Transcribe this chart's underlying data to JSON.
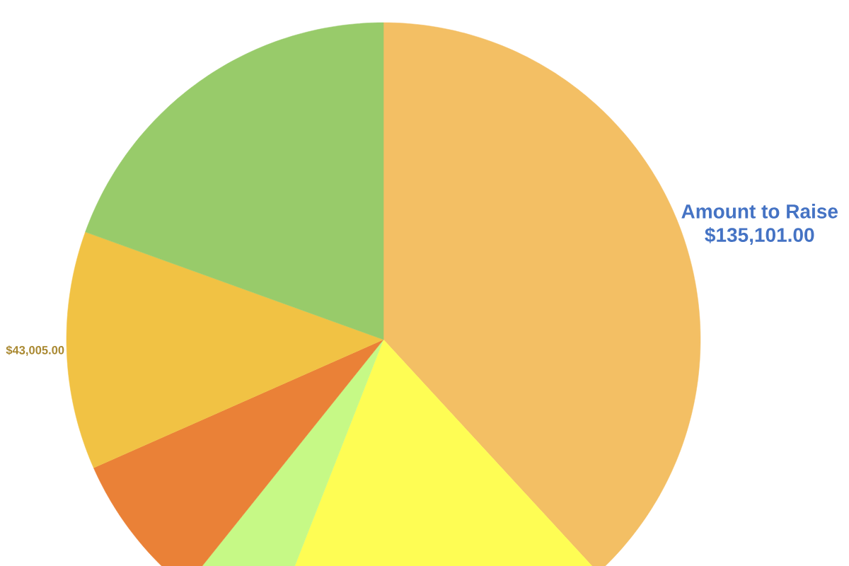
{
  "chart_data": {
    "type": "pie",
    "categories": [
      "Amount to Raise",
      null,
      null,
      null,
      null,
      null
    ],
    "values": [
      135101,
      63000,
      17000,
      27000,
      43005,
      69000
    ],
    "colors": [
      "#f3bf64",
      "#fefd54",
      "#c6f986",
      "#ea8137",
      "#f1c244",
      "#98cb6a"
    ],
    "value_labels": [
      "$135,101.00",
      null,
      null,
      null,
      "$43,005.00",
      null
    ]
  }
}
